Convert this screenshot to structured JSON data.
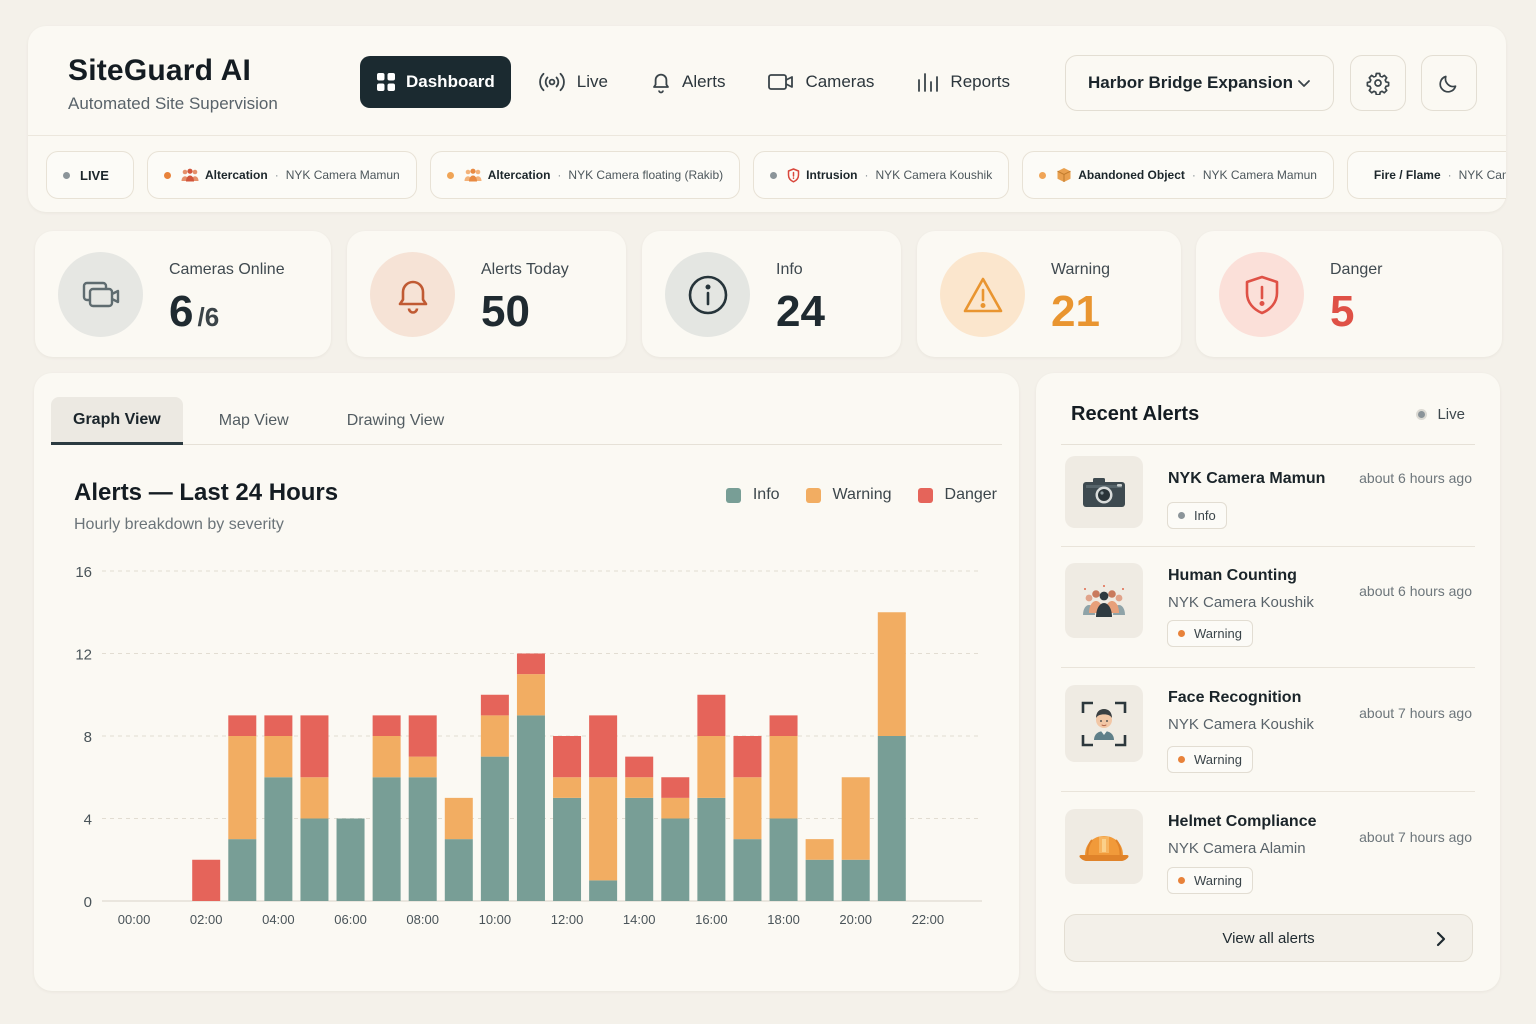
{
  "brand": {
    "title": "SiteGuard AI",
    "subtitle": "Automated Site Supervision"
  },
  "nav": [
    {
      "label": "Dashboard",
      "icon": "grid-icon",
      "active": true
    },
    {
      "label": "Live",
      "icon": "broadcast-icon"
    },
    {
      "label": "Alerts",
      "icon": "bell-icon"
    },
    {
      "label": "Cameras",
      "icon": "video-camera-icon"
    },
    {
      "label": "Reports",
      "icon": "bar-chart-icon"
    }
  ],
  "project_selector": {
    "value": "Harbor Bridge Expansion"
  },
  "ticker": {
    "live_label": "LIVE",
    "items": [
      {
        "type": "Altercation",
        "camera": "NYK Camera Mamun",
        "icon": "people-icon",
        "dot": "#e8823a"
      },
      {
        "type": "Altercation",
        "camera": "NYK Camera floating (Rakib)",
        "icon": "people-icon",
        "dot": "#f0a456"
      },
      {
        "type": "Intrusion",
        "camera": "NYK Camera Koushik",
        "icon": "shield-icon",
        "dot": "#8b9499"
      },
      {
        "type": "Abandoned Object",
        "camera": "NYK Camera Mamun",
        "icon": "box-icon",
        "dot": "#f0a456"
      },
      {
        "type": "Fire / Flame",
        "camera": "NYK Camera Al...",
        "icon": "flame-icon",
        "dot": ""
      }
    ]
  },
  "stats": {
    "cameras": {
      "label": "Cameras Online",
      "value": "6",
      "total": "/6"
    },
    "alerts_today": {
      "label": "Alerts Today",
      "value": "50"
    },
    "info": {
      "label": "Info",
      "value": "24"
    },
    "warning": {
      "label": "Warning",
      "value": "21"
    },
    "danger": {
      "label": "Danger",
      "value": "5"
    }
  },
  "colors": {
    "info": "#789e96",
    "warning": "#f2ad62",
    "danger": "#e5645a",
    "danger_text": "#df5146",
    "warning_text": "#e99530"
  },
  "tabs": [
    {
      "label": "Graph View",
      "active": true
    },
    {
      "label": "Map View"
    },
    {
      "label": "Drawing View"
    }
  ],
  "chart": {
    "title": "Alerts — Last 24 Hours",
    "subtitle": "Hourly breakdown by severity"
  },
  "chart_data": {
    "type": "bar",
    "stacked": true,
    "categories": [
      "00:00",
      "01:00",
      "02:00",
      "03:00",
      "04:00",
      "05:00",
      "06:00",
      "07:00",
      "08:00",
      "09:00",
      "10:00",
      "11:00",
      "12:00",
      "13:00",
      "14:00",
      "15:00",
      "16:00",
      "17:00",
      "18:00",
      "19:00",
      "20:00",
      "21:00",
      "22:00",
      "23:00"
    ],
    "x_tick_labels": [
      "00:00",
      "02:00",
      "04:00",
      "06:00",
      "08:00",
      "10:00",
      "12:00",
      "14:00",
      "16:00",
      "18:00",
      "20:00",
      "22:00"
    ],
    "series": [
      {
        "name": "Info",
        "values": [
          0,
          0,
          0,
          3,
          6,
          4,
          4,
          6,
          6,
          3,
          7,
          9,
          5,
          1,
          5,
          4,
          5,
          3,
          4,
          2,
          2,
          8,
          0,
          0
        ]
      },
      {
        "name": "Warning",
        "values": [
          0,
          0,
          0,
          5,
          2,
          2,
          0,
          2,
          1,
          2,
          2,
          2,
          1,
          5,
          1,
          1,
          3,
          3,
          4,
          1,
          4,
          6,
          0,
          0
        ]
      },
      {
        "name": "Danger",
        "values": [
          0,
          0,
          2,
          1,
          1,
          3,
          0,
          1,
          2,
          0,
          1,
          1,
          2,
          3,
          1,
          1,
          2,
          2,
          1,
          0,
          0,
          0,
          0,
          0
        ]
      }
    ],
    "yticks": [
      0,
      4,
      8,
      12,
      16
    ],
    "ylim": [
      0,
      16
    ],
    "grid": true,
    "legend": "top-right"
  },
  "recent_alerts": {
    "title": "Recent Alerts",
    "live_label": "Live",
    "items": [
      {
        "title": "NYK Camera Mamun",
        "camera": "",
        "time": "about 6 hours ago",
        "level": "Info",
        "dot": "#8b9499",
        "icon": "camera-icon"
      },
      {
        "title": "Human Counting",
        "camera": "NYK Camera Koushik",
        "time": "about 6 hours ago",
        "level": "Warning",
        "dot": "#e8823a",
        "icon": "crowd-icon"
      },
      {
        "title": "Face Recognition",
        "camera": "NYK Camera Koushik",
        "time": "about 7 hours ago",
        "level": "Warning",
        "dot": "#e8823a",
        "icon": "face-scan-icon"
      },
      {
        "title": "Helmet Compliance",
        "camera": "NYK Camera Alamin",
        "time": "about 7 hours ago",
        "level": "Warning",
        "dot": "#e8823a",
        "icon": "hard-hat-icon"
      }
    ],
    "view_all_label": "View all alerts"
  }
}
